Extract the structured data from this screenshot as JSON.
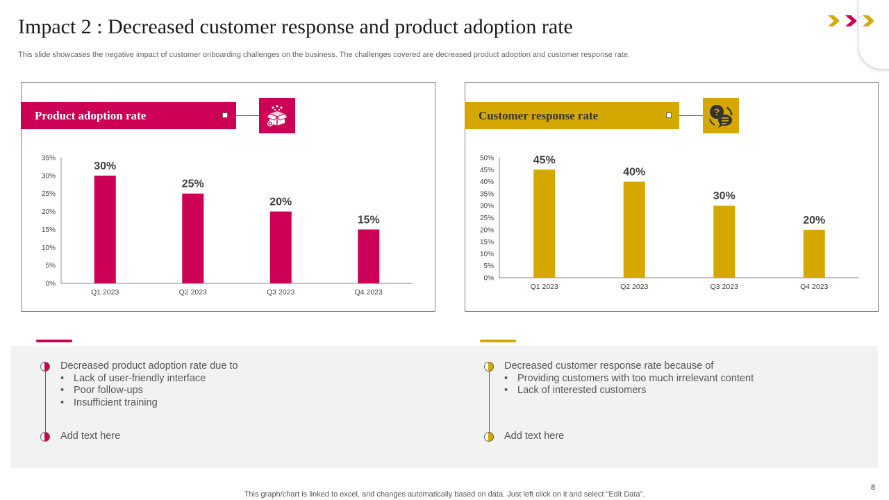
{
  "header": {
    "title": "Impact 2 : Decreased customer response and product adoption rate",
    "subtitle": "This slide showcases the negative impact of customer onboarding challenges on the business. The challenges covered are decreased product adoption and customer response rate."
  },
  "colors": {
    "pink": "#cc0055",
    "gold": "#d4a800"
  },
  "left_panel": {
    "label": "Product adoption rate",
    "icon": "gift-box-icon"
  },
  "right_panel": {
    "label": "Customer response rate",
    "icon": "question-chat-icon"
  },
  "chart_data": [
    {
      "type": "bar",
      "title": "Product adoption rate",
      "categories": [
        "Q1 2023",
        "Q2 2023",
        "Q3 2023",
        "Q4 2023"
      ],
      "values": [
        30,
        25,
        20,
        15
      ],
      "data_labels": [
        "30%",
        "25%",
        "20%",
        "15%"
      ],
      "yticks": [
        "0%",
        "5%",
        "10%",
        "15%",
        "20%",
        "25%",
        "30%",
        "35%"
      ],
      "ylim": [
        0,
        35
      ],
      "ystep": 5,
      "color": "#cc0055"
    },
    {
      "type": "bar",
      "title": "Customer response rate",
      "categories": [
        "Q1 2023",
        "Q2 2023",
        "Q3 2023",
        "Q4 2023"
      ],
      "values": [
        45,
        40,
        30,
        20
      ],
      "data_labels": [
        "45%",
        "40%",
        "30%",
        "20%"
      ],
      "yticks": [
        "0%",
        "5%",
        "10%",
        "15%",
        "20%",
        "25%",
        "30%",
        "35%",
        "40%",
        "45%",
        "50%"
      ],
      "ylim": [
        0,
        50
      ],
      "ystep": 5,
      "color": "#d4a800"
    }
  ],
  "notes": {
    "left": {
      "heading": "Decreased product adoption rate due to",
      "bullets": [
        "Lack of user-friendly interface",
        "Poor follow-ups",
        "Insufficient training"
      ],
      "add_text": "Add text here"
    },
    "right": {
      "heading": "Decreased customer response rate because of",
      "bullets": [
        "Providing customers with too much irrelevant content",
        "Lack of interested customers"
      ],
      "add_text": "Add text here"
    }
  },
  "footer": {
    "note": "This graph/chart is linked to excel, and changes automatically based on data. Just left click on it and select “Edit Data”.",
    "page_number": "8"
  }
}
